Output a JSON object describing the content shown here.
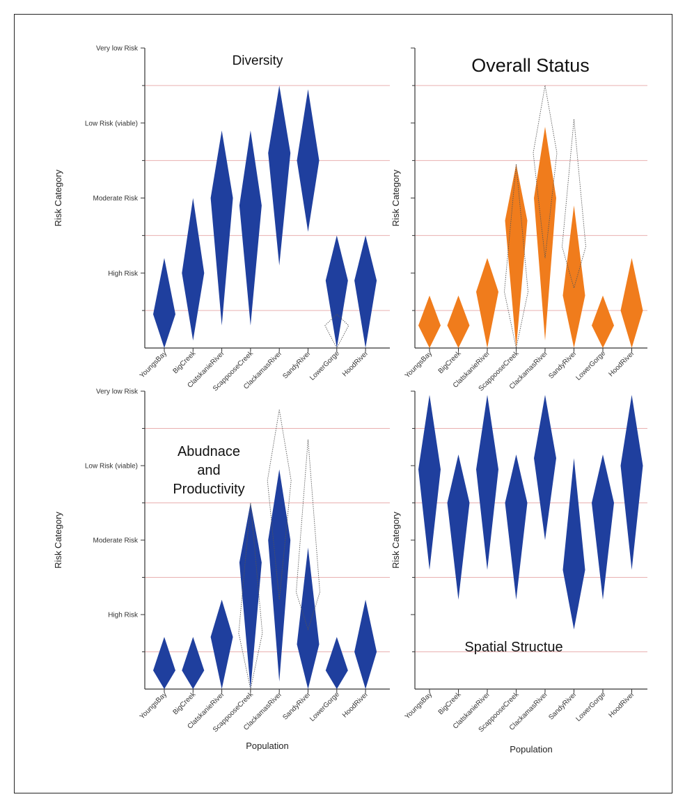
{
  "chart_data": [
    {
      "type": "violin",
      "title": "Diversity",
      "ylabel": "Risk Category",
      "xlabel": "",
      "ylim": [
        0,
        4
      ],
      "y_ticks": [
        {
          "value": 1,
          "label": "High Risk"
        },
        {
          "value": 2,
          "label": "Moderate Risk"
        },
        {
          "value": 3,
          "label": "Low Risk (viable)"
        },
        {
          "value": 4,
          "label": "Very low Risk"
        }
      ],
      "categories": [
        "YoungsBay",
        "BigCreek",
        "ClatskanieRiver",
        "ScappooseCreek",
        "ClackamasRiver",
        "SandyRiver",
        "LowerGorge",
        "HoodRiver"
      ],
      "fill_color": "#1f3f9e",
      "distributions": [
        {
          "min": 0.0,
          "max": 1.2,
          "mode": 0.45
        },
        {
          "min": 0.1,
          "max": 2.0,
          "mode": 1.0
        },
        {
          "min": 0.3,
          "max": 2.9,
          "mode": 2.0
        },
        {
          "min": 0.3,
          "max": 2.9,
          "mode": 1.9
        },
        {
          "min": 1.1,
          "max": 3.5,
          "mode": 2.6
        },
        {
          "min": 1.55,
          "max": 3.45,
          "mode": 2.5
        },
        {
          "min": 0.0,
          "max": 1.5,
          "mode": 0.9
        },
        {
          "min": 0.0,
          "max": 1.5,
          "mode": 0.9
        }
      ],
      "reference_outlines": [
        {
          "category": "LowerGorge",
          "min": 0.0,
          "max": 0.45,
          "mode": 0.3
        }
      ]
    },
    {
      "type": "violin",
      "title": "Overall Status",
      "ylabel": "Risk Category",
      "xlabel": "",
      "ylim": [
        0,
        4
      ],
      "y_ticks": [
        {
          "value": 1,
          "label": ""
        },
        {
          "value": 2,
          "label": ""
        },
        {
          "value": 3,
          "label": ""
        },
        {
          "value": 4,
          "label": ""
        }
      ],
      "categories": [
        "YoungsBay",
        "BigCreek",
        "ClatskanieRiver",
        "ScappooseCreek",
        "ClackamasRiver",
        "SandyRiver",
        "LowerGorge",
        "HoodRiver"
      ],
      "fill_color": "#f07c1c",
      "distributions": [
        {
          "min": 0.0,
          "max": 0.7,
          "mode": 0.3
        },
        {
          "min": 0.0,
          "max": 0.7,
          "mode": 0.3
        },
        {
          "min": 0.0,
          "max": 1.2,
          "mode": 0.75
        },
        {
          "min": 0.0,
          "max": 2.45,
          "mode": 1.7
        },
        {
          "min": 0.1,
          "max": 2.95,
          "mode": 2.0
        },
        {
          "min": 0.0,
          "max": 1.9,
          "mode": 0.7
        },
        {
          "min": 0.0,
          "max": 0.7,
          "mode": 0.3
        },
        {
          "min": 0.0,
          "max": 1.2,
          "mode": 0.5
        }
      ],
      "reference_outlines": [
        {
          "category": "ScappooseCreek",
          "min": 0.0,
          "max": 2.45,
          "mode": 0.75
        },
        {
          "category": "ClackamasRiver",
          "min": 1.2,
          "max": 3.5,
          "mode": 2.6
        },
        {
          "category": "SandyRiver",
          "min": 0.8,
          "max": 3.05,
          "mode": 1.35
        }
      ]
    },
    {
      "type": "violin",
      "title": "Abudnace and Productivity",
      "title_lines": [
        "Abudnace",
        "and",
        "Productivity"
      ],
      "ylabel": "Risk Category",
      "xlabel": "Population",
      "ylim": [
        0,
        4
      ],
      "y_ticks": [
        {
          "value": 1,
          "label": "High Risk"
        },
        {
          "value": 2,
          "label": "Moderate Risk"
        },
        {
          "value": 3,
          "label": "Low Risk (viable)"
        },
        {
          "value": 4,
          "label": "Very low Risk"
        }
      ],
      "categories": [
        "YoungsBay",
        "BigCreek",
        "ClatskanieRiver",
        "ScappooseCreek",
        "ClackamasRiver",
        "SandyRiver",
        "LowerGorge",
        "HoodRiver"
      ],
      "fill_color": "#1f3f9e",
      "distributions": [
        {
          "min": 0.0,
          "max": 0.7,
          "mode": 0.25
        },
        {
          "min": 0.0,
          "max": 0.7,
          "mode": 0.25
        },
        {
          "min": 0.0,
          "max": 1.2,
          "mode": 0.7
        },
        {
          "min": 0.0,
          "max": 2.5,
          "mode": 1.7
        },
        {
          "min": 0.1,
          "max": 2.95,
          "mode": 2.0
        },
        {
          "min": 0.0,
          "max": 1.9,
          "mode": 0.6
        },
        {
          "min": 0.0,
          "max": 0.7,
          "mode": 0.25
        },
        {
          "min": 0.0,
          "max": 1.2,
          "mode": 0.5
        }
      ],
      "reference_outlines": [
        {
          "category": "ScappooseCreek",
          "min": 0.0,
          "max": 2.5,
          "mode": 0.75
        },
        {
          "category": "ClackamasRiver",
          "min": 1.2,
          "max": 3.75,
          "mode": 2.8
        },
        {
          "category": "SandyRiver",
          "min": 0.8,
          "max": 3.35,
          "mode": 1.3
        }
      ]
    },
    {
      "type": "violin",
      "title": "Spatial Structue",
      "ylabel": "Risk Category",
      "xlabel": "Population",
      "ylim": [
        0,
        4
      ],
      "y_ticks": [
        {
          "value": 1,
          "label": ""
        },
        {
          "value": 2,
          "label": ""
        },
        {
          "value": 3,
          "label": ""
        },
        {
          "value": 4,
          "label": ""
        }
      ],
      "categories": [
        "YoungsBay",
        "BigCreek",
        "ClatskanieRiver",
        "ScappooseCreek",
        "ClackamasRiver",
        "SandyRiver",
        "LowerGorge",
        "HoodRiver"
      ],
      "fill_color": "#1f3f9e",
      "distributions": [
        {
          "min": 1.6,
          "max": 3.95,
          "mode": 2.95
        },
        {
          "min": 1.2,
          "max": 3.15,
          "mode": 2.5
        },
        {
          "min": 1.6,
          "max": 3.95,
          "mode": 2.95
        },
        {
          "min": 1.2,
          "max": 3.15,
          "mode": 2.5
        },
        {
          "min": 2.0,
          "max": 3.95,
          "mode": 3.1
        },
        {
          "min": 0.8,
          "max": 3.1,
          "mode": 1.6
        },
        {
          "min": 1.2,
          "max": 3.15,
          "mode": 2.5
        },
        {
          "min": 1.6,
          "max": 3.95,
          "mode": 3.0
        }
      ],
      "reference_outlines": []
    }
  ]
}
